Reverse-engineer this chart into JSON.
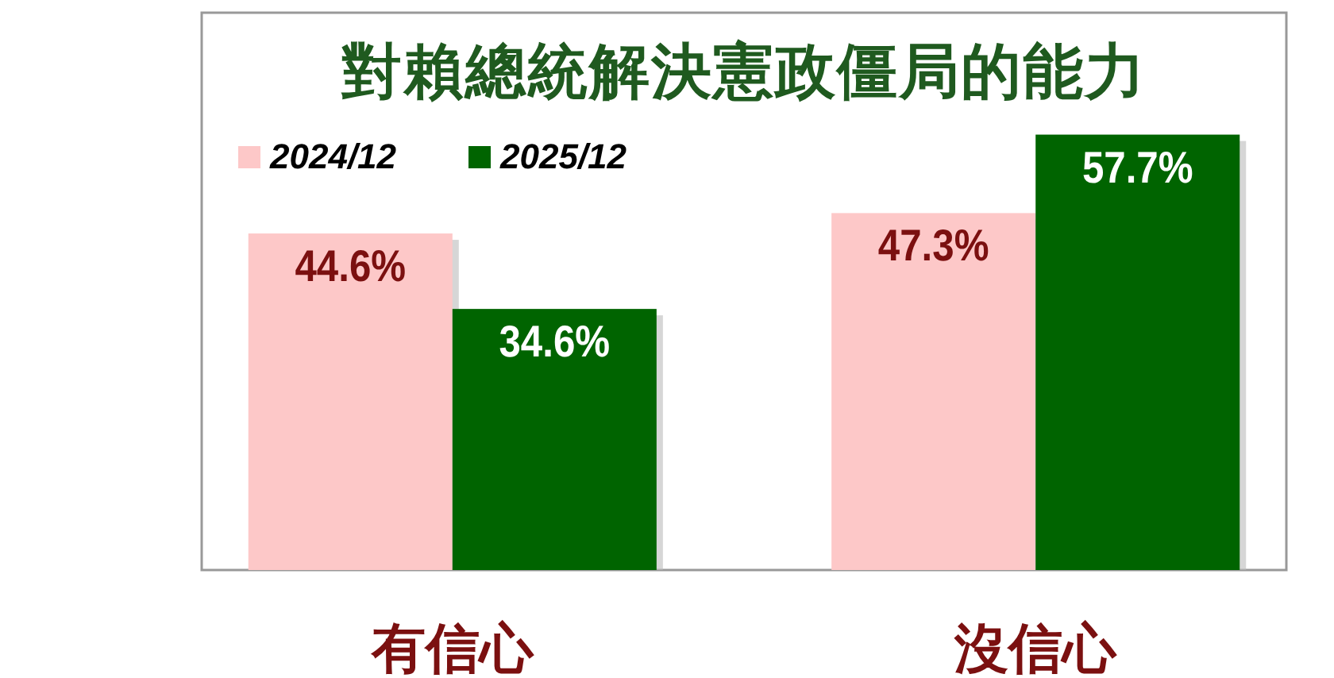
{
  "chart_data": {
    "type": "bar",
    "title": "對賴總統解決憲政僵局的能力",
    "categories": [
      "有信心",
      "沒信心"
    ],
    "series": [
      {
        "name": "2024/12",
        "color": "#fdc8c8",
        "values": [
          44.6,
          47.3
        ],
        "value_labels": [
          "44.6%",
          "47.3%"
        ]
      },
      {
        "name": "2025/12",
        "color": "#006400",
        "values": [
          34.6,
          57.7
        ],
        "value_labels": [
          "34.6%",
          "57.7%"
        ]
      }
    ],
    "legend": "top left",
    "grid": false
  }
}
